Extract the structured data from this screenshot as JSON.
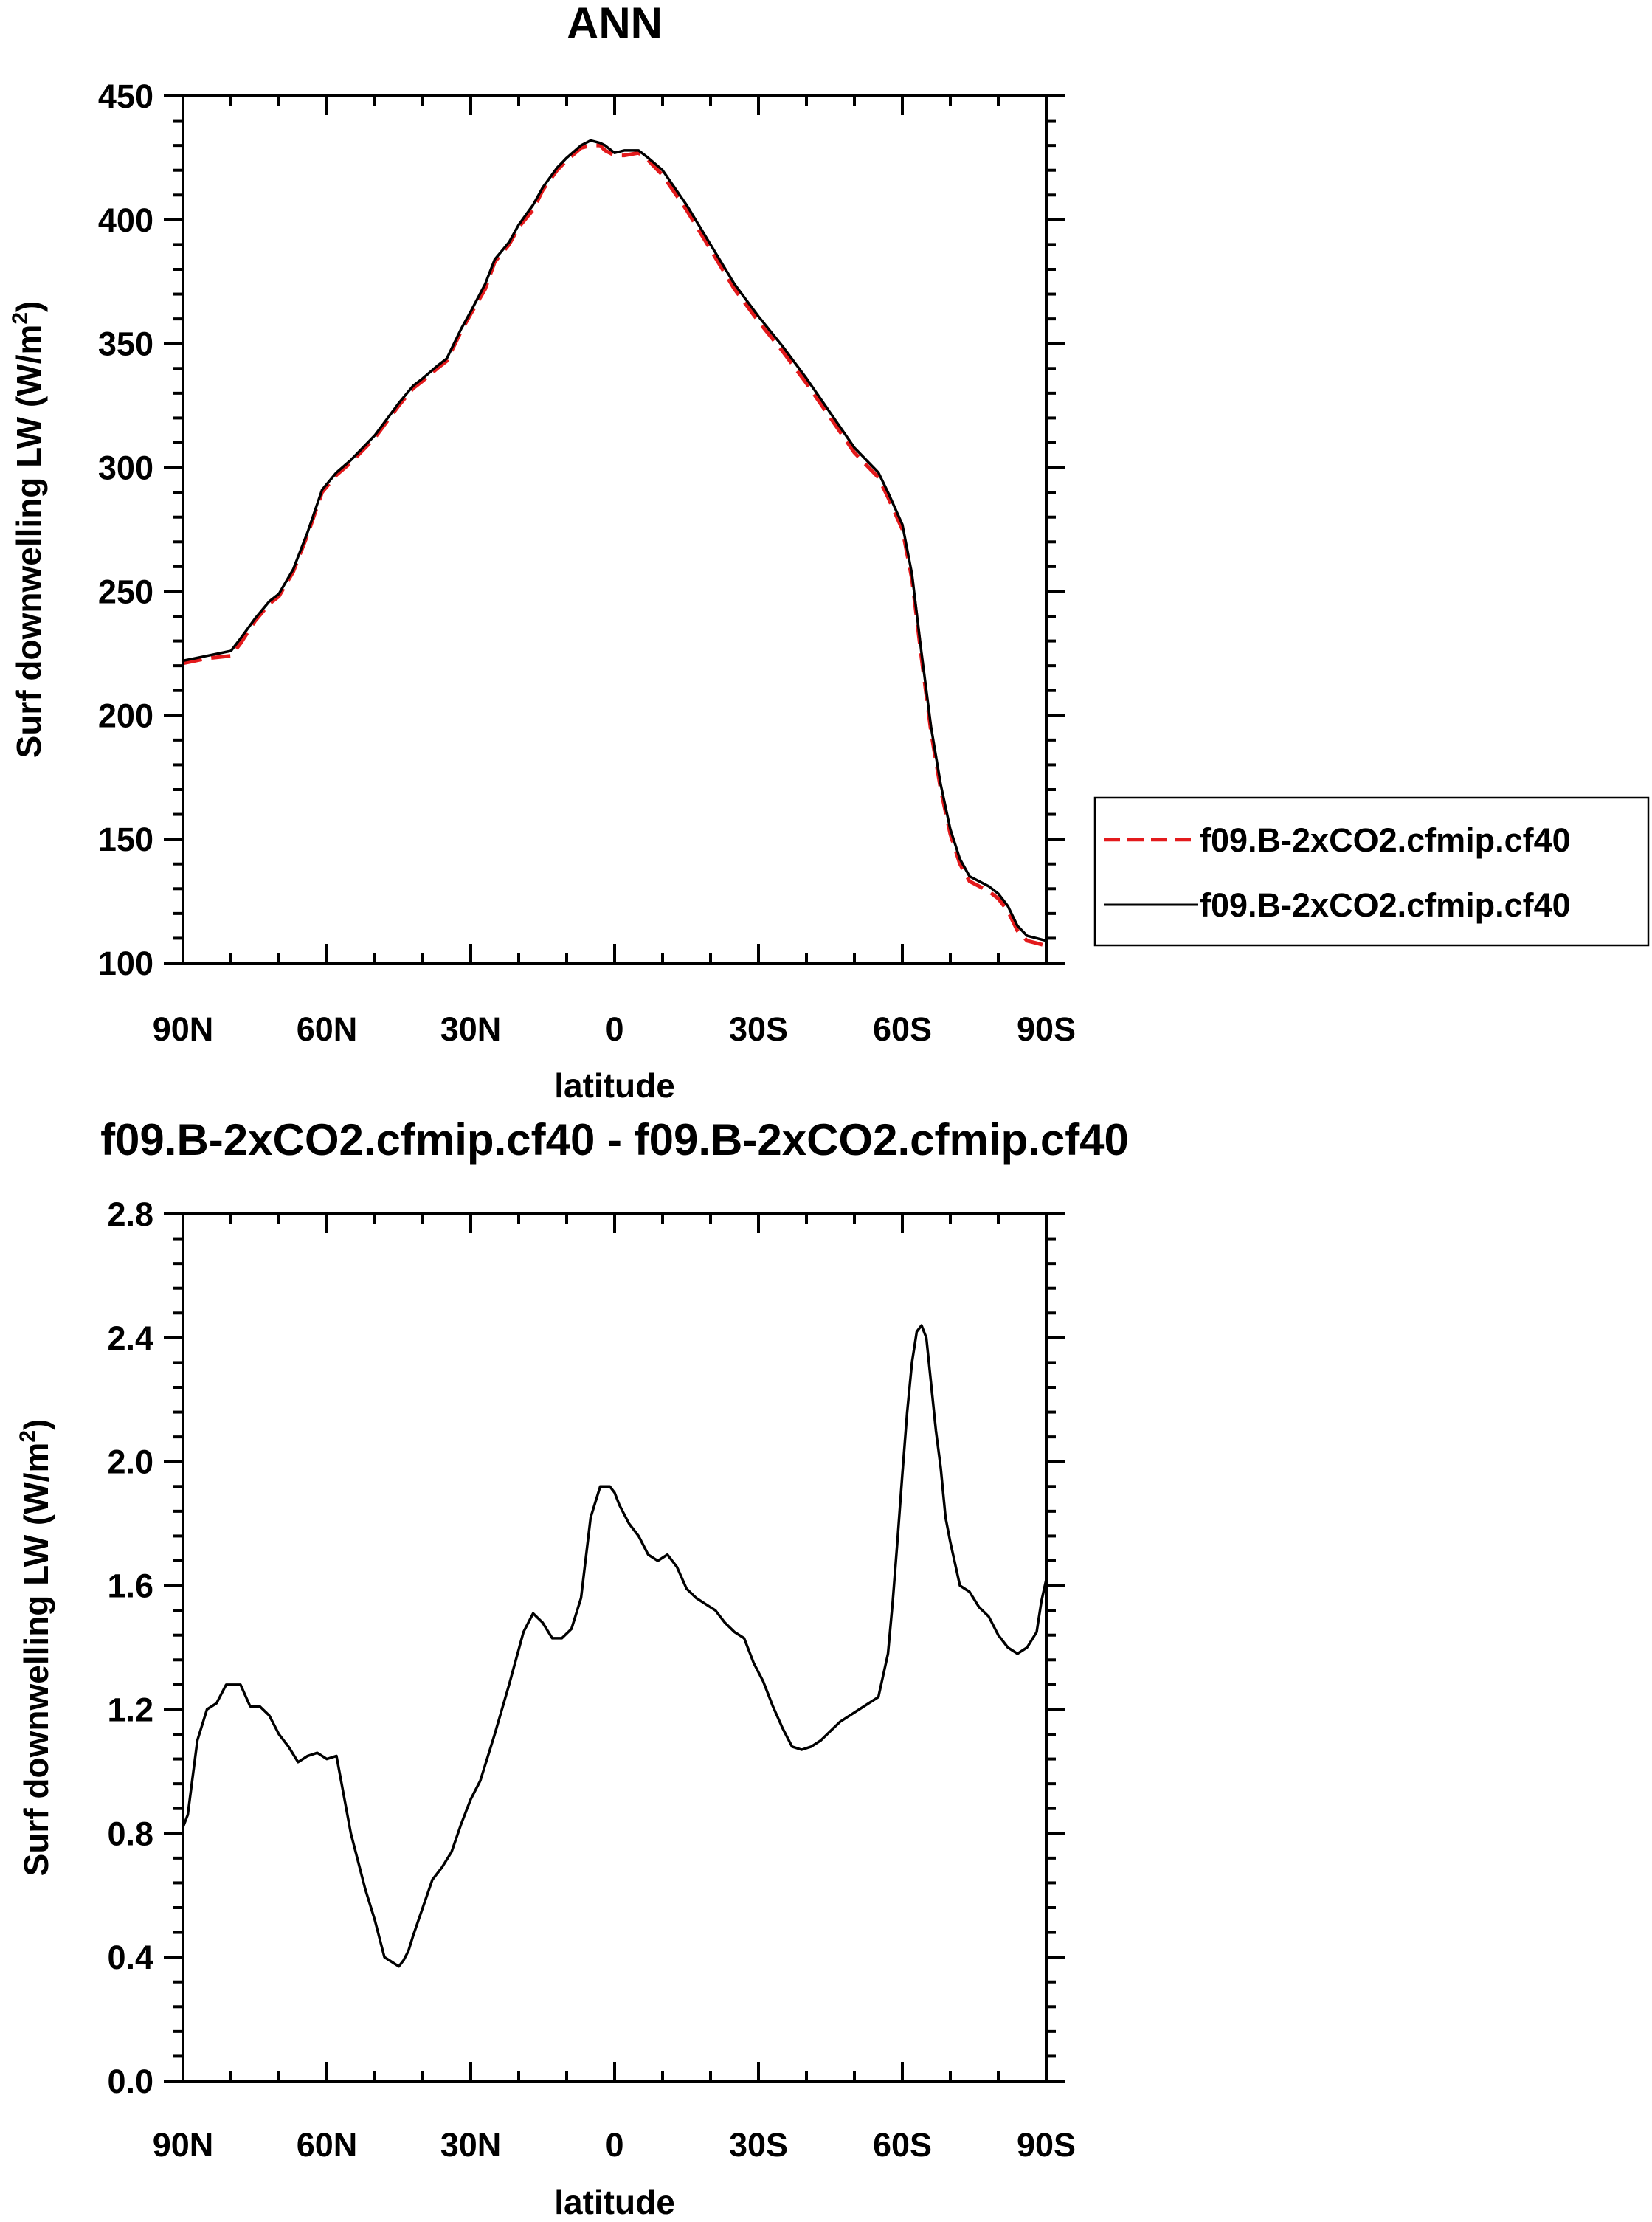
{
  "chart_data": [
    {
      "type": "line",
      "title": "ANN",
      "xlabel": "latitude",
      "ylabel": "Surf downwelling LW (W/m",
      "ylabel_sup": "2",
      "ylabel_close": ")",
      "xlim": [
        90,
        -90
      ],
      "ylim": [
        100,
        450
      ],
      "x_ticks": [
        90,
        60,
        30,
        0,
        -30,
        -60,
        -90
      ],
      "x_tick_labels": [
        "90N",
        "60N",
        "30N",
        "0",
        "30S",
        "60S",
        "90S"
      ],
      "y_ticks": [
        100,
        150,
        200,
        250,
        300,
        350,
        400,
        450
      ],
      "y_tick_labels": [
        "100",
        "150",
        "200",
        "250",
        "300",
        "350",
        "400",
        "450"
      ],
      "grid": false,
      "legend_position": "right",
      "x": [
        90,
        85,
        80,
        78,
        75,
        72,
        70,
        67,
        64,
        61,
        58,
        55,
        50,
        45,
        42,
        40,
        37,
        35,
        32,
        30,
        27,
        25,
        22,
        20,
        17,
        15,
        12,
        10,
        7,
        5,
        3,
        2,
        0,
        -2,
        -5,
        -7,
        -10,
        -15,
        -20,
        -25,
        -30,
        -35,
        -40,
        -45,
        -50,
        -55,
        -57,
        -60,
        -62,
        -64,
        -66,
        -68,
        -70,
        -72,
        -74,
        -76,
        -78,
        -80,
        -82,
        -84,
        -86,
        -88,
        -90
      ],
      "series": [
        {
          "name": "f09.B-2xCO2.cfmip.cf40",
          "color": "#e31a1c",
          "dash": "dashed",
          "values": [
            221,
            223,
            224,
            229,
            238,
            245,
            248,
            258,
            273,
            290,
            297,
            302,
            312,
            325,
            332,
            335,
            340,
            343,
            355,
            362,
            372,
            383,
            390,
            397,
            404,
            412,
            420,
            424,
            429,
            430,
            430,
            428,
            426,
            426,
            427,
            424,
            418,
            404,
            388,
            372,
            359,
            347,
            334,
            320,
            306,
            296,
            288,
            275,
            255,
            223,
            193,
            170,
            152,
            140,
            133,
            131,
            129,
            126,
            121,
            113,
            109,
            108,
            107
          ]
        },
        {
          "name": "f09.B-2xCO2.cfmip.cf40",
          "color": "#000000",
          "dash": "solid",
          "values": [
            222,
            224,
            226,
            231,
            239,
            246,
            249,
            259,
            274,
            291,
            298,
            303,
            313,
            326,
            333,
            336,
            341,
            344,
            356,
            363,
            374,
            384,
            391,
            398,
            406,
            413,
            421,
            425,
            430,
            432,
            431,
            430,
            427,
            428,
            428,
            425,
            420,
            406,
            390,
            374,
            361,
            349,
            336,
            322,
            308,
            298,
            290,
            277,
            257,
            225,
            195,
            172,
            154,
            142,
            135,
            133,
            131,
            128,
            123,
            115,
            111,
            110,
            109
          ]
        }
      ]
    },
    {
      "type": "line",
      "title": "f09.B-2xCO2.cfmip.cf40 - f09.B-2xCO2.cfmip.cf40",
      "xlabel": "latitude",
      "ylabel": "Surf downwelling LW (W/m",
      "ylabel_sup": "2",
      "ylabel_close": ")",
      "xlim": [
        90,
        -90
      ],
      "ylim": [
        0.0,
        2.8
      ],
      "x_ticks": [
        90,
        60,
        30,
        0,
        -30,
        -60,
        -90
      ],
      "x_tick_labels": [
        "90N",
        "60N",
        "30N",
        "0",
        "30S",
        "60S",
        "90S"
      ],
      "y_ticks": [
        0.0,
        0.4,
        0.8,
        1.2,
        1.6,
        2.0,
        2.4,
        2.8
      ],
      "y_tick_labels": [
        "0.0",
        "0.4",
        "0.8",
        "1.2",
        "1.6",
        "2.0",
        "2.4",
        "2.8"
      ],
      "grid": false,
      "x": [
        90,
        89,
        87,
        85,
        83,
        81,
        80,
        78,
        76,
        74,
        72,
        70,
        68,
        66,
        64,
        62,
        60,
        58,
        55,
        52,
        50,
        48,
        46,
        45,
        44,
        43,
        42,
        40,
        38,
        36,
        34,
        32,
        30,
        28,
        25,
        22,
        19,
        17,
        15,
        13,
        11,
        9,
        7,
        5,
        3,
        1,
        0,
        -1,
        -2,
        -3,
        -5,
        -7,
        -9,
        -11,
        -13,
        -15,
        -17,
        -19,
        -21,
        -23,
        -25,
        -27,
        -29,
        -31,
        -33,
        -35,
        -37,
        -39,
        -41,
        -43,
        -45,
        -47,
        -49,
        -51,
        -53,
        -55,
        -57,
        -58,
        -59,
        -60,
        -61,
        -62,
        -63,
        -64,
        -65,
        -66,
        -67,
        -68,
        -69,
        -70,
        -72,
        -74,
        -76,
        -78,
        -80,
        -82,
        -84,
        -86,
        -88,
        -89,
        -90
      ],
      "series": [
        {
          "color": "#000000",
          "dash": "solid",
          "values": [
            0.82,
            0.86,
            1.1,
            1.2,
            1.22,
            1.28,
            1.28,
            1.28,
            1.21,
            1.21,
            1.18,
            1.12,
            1.08,
            1.03,
            1.05,
            1.06,
            1.04,
            1.05,
            0.8,
            0.62,
            0.52,
            0.4,
            0.38,
            0.37,
            0.39,
            0.42,
            0.47,
            0.56,
            0.65,
            0.69,
            0.74,
            0.83,
            0.91,
            0.97,
            1.12,
            1.28,
            1.45,
            1.51,
            1.48,
            1.43,
            1.43,
            1.46,
            1.56,
            1.82,
            1.92,
            1.92,
            1.9,
            1.86,
            1.83,
            1.8,
            1.76,
            1.7,
            1.68,
            1.7,
            1.66,
            1.59,
            1.56,
            1.54,
            1.52,
            1.48,
            1.45,
            1.43,
            1.35,
            1.29,
            1.21,
            1.14,
            1.08,
            1.07,
            1.08,
            1.1,
            1.13,
            1.16,
            1.18,
            1.2,
            1.22,
            1.24,
            1.38,
            1.55,
            1.75,
            1.96,
            2.16,
            2.32,
            2.42,
            2.44,
            2.4,
            2.25,
            2.1,
            1.98,
            1.82,
            1.74,
            1.6,
            1.58,
            1.53,
            1.5,
            1.44,
            1.4,
            1.38,
            1.4,
            1.45,
            1.55,
            1.62
          ]
        }
      ]
    }
  ]
}
